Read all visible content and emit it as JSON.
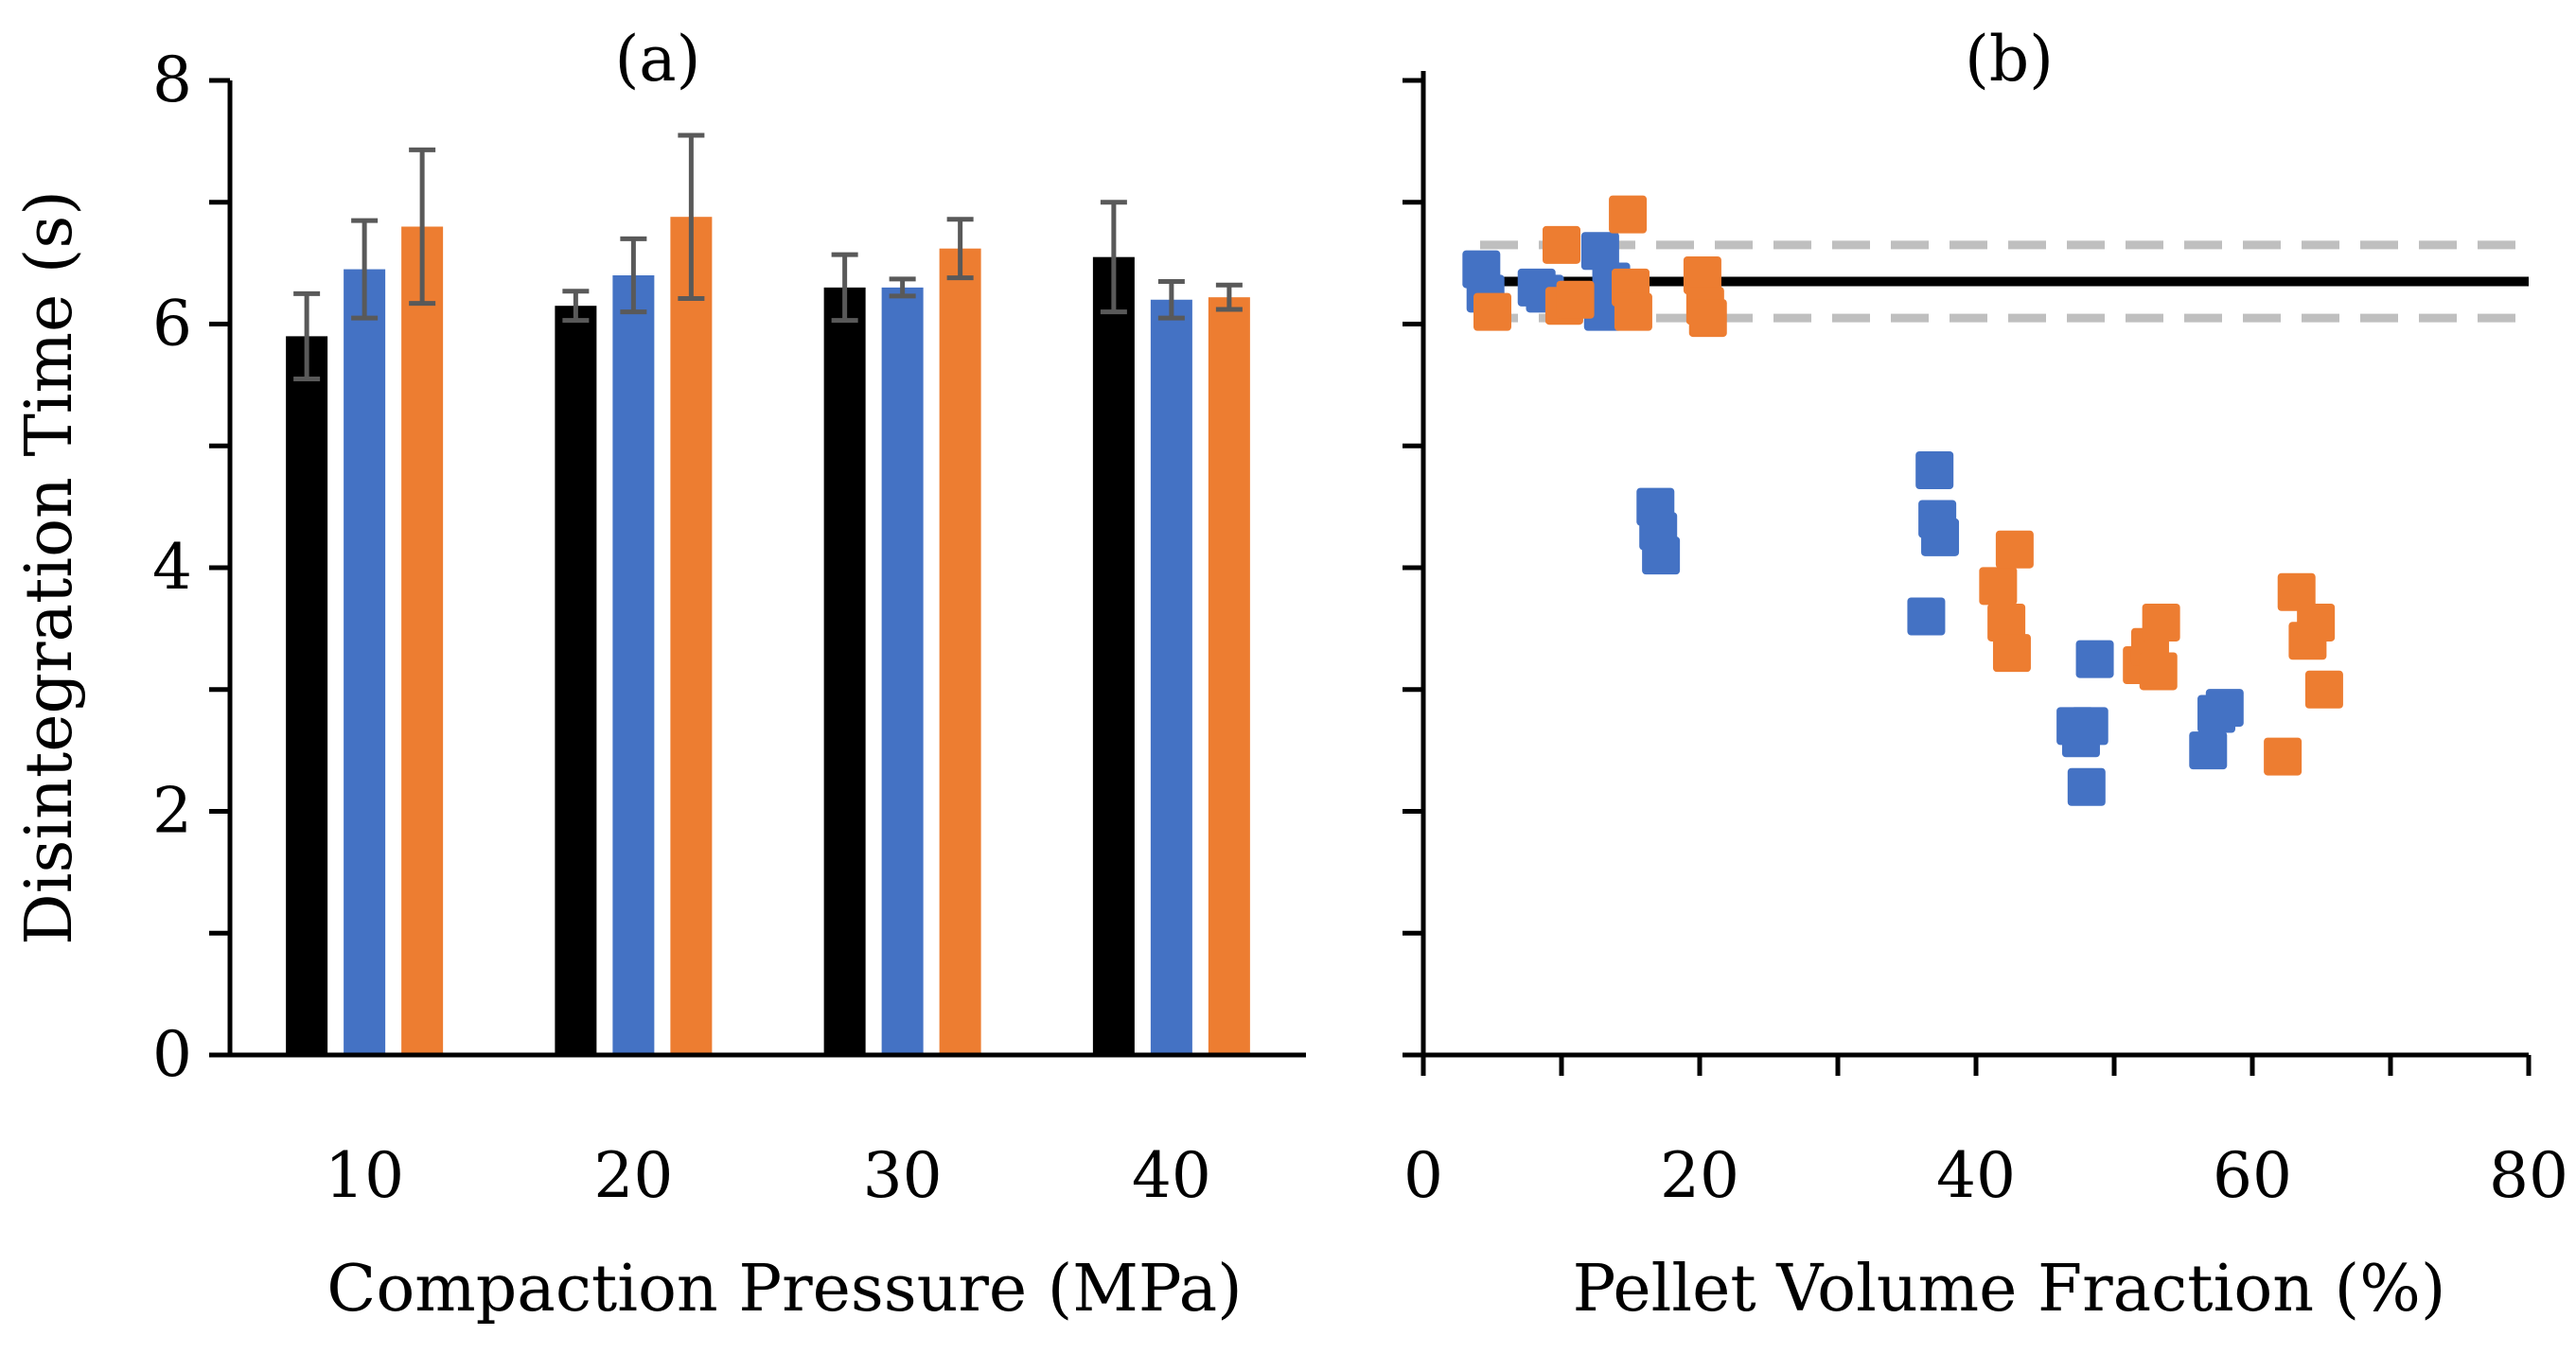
{
  "colors": {
    "series_black": "#000000",
    "series_blue": "#4472C4",
    "series_orange": "#ED7D31",
    "error_bar": "#595959",
    "dashed_line": "#BFBFBF",
    "axis": "#000000"
  },
  "chart_data": [
    {
      "type": "bar",
      "panel_label": "(a)",
      "ylabel": "Disintegration Time (s)",
      "xlabel": "Compaction Pressure (MPa)",
      "ylim": [
        0,
        8
      ],
      "yticks": [
        0,
        2,
        4,
        6,
        8
      ],
      "y_minor_step": 1,
      "categories": [
        "10",
        "20",
        "30",
        "40"
      ],
      "series": [
        {
          "name": "black",
          "color": "#000000",
          "values": [
            5.9,
            6.15,
            6.3,
            6.55
          ],
          "errors": [
            0.35,
            0.12,
            0.27,
            0.45
          ]
        },
        {
          "name": "blue",
          "color": "#4472C4",
          "values": [
            6.45,
            6.4,
            6.3,
            6.2
          ],
          "errors": [
            0.4,
            0.3,
            0.07,
            0.15
          ]
        },
        {
          "name": "orange",
          "color": "#ED7D31",
          "values": [
            6.8,
            6.88,
            6.62,
            6.22
          ],
          "errors": [
            0.63,
            0.67,
            0.24,
            0.1
          ]
        }
      ]
    },
    {
      "type": "scatter",
      "panel_label": "(b)",
      "xlabel": "Pellet Volume Fraction (%)",
      "xlim": [
        0,
        80
      ],
      "xticks": [
        0,
        20,
        40,
        60,
        80
      ],
      "x_minor_step": 10,
      "ylim": [
        0,
        8
      ],
      "y_minor_step": 1,
      "hlines": [
        {
          "y": 6.35,
          "style": "solid",
          "color": "#000000"
        },
        {
          "y": 6.65,
          "style": "dashed",
          "color": "#BFBFBF"
        },
        {
          "y": 6.05,
          "style": "dashed",
          "color": "#BFBFBF"
        }
      ],
      "series": [
        {
          "name": "blue",
          "color": "#4472C4",
          "points": [
            [
              4.2,
              6.45
            ],
            [
              4.5,
              6.25
            ],
            [
              8.2,
              6.3
            ],
            [
              8.8,
              6.25
            ],
            [
              12.8,
              6.6
            ],
            [
              13.0,
              6.1
            ],
            [
              13.6,
              6.35
            ],
            [
              16.8,
              4.5
            ],
            [
              17.0,
              4.3
            ],
            [
              17.2,
              4.1
            ],
            [
              37.0,
              4.8
            ],
            [
              37.2,
              4.4
            ],
            [
              37.4,
              4.25
            ],
            [
              36.4,
              3.6
            ],
            [
              47.2,
              2.7
            ],
            [
              47.6,
              2.6
            ],
            [
              48.0,
              2.2
            ],
            [
              48.2,
              2.7
            ],
            [
              48.6,
              3.25
            ],
            [
              56.8,
              2.5
            ],
            [
              57.4,
              2.8
            ],
            [
              58.0,
              2.85
            ]
          ]
        },
        {
          "name": "orange",
          "color": "#ED7D31",
          "points": [
            [
              5.0,
              6.1
            ],
            [
              10.0,
              6.65
            ],
            [
              10.2,
              6.15
            ],
            [
              11.0,
              6.2
            ],
            [
              14.8,
              6.9
            ],
            [
              15.0,
              6.3
            ],
            [
              15.2,
              6.1
            ],
            [
              20.2,
              6.4
            ],
            [
              20.4,
              6.15
            ],
            [
              20.6,
              6.05
            ],
            [
              41.6,
              3.85
            ],
            [
              42.2,
              3.55
            ],
            [
              42.6,
              3.3
            ],
            [
              42.8,
              4.15
            ],
            [
              52.0,
              3.2
            ],
            [
              52.6,
              3.35
            ],
            [
              53.2,
              3.15
            ],
            [
              53.4,
              3.55
            ],
            [
              62.2,
              2.45
            ],
            [
              63.2,
              3.8
            ],
            [
              64.0,
              3.4
            ],
            [
              64.6,
              3.55
            ],
            [
              65.2,
              3.0
            ]
          ]
        }
      ]
    }
  ]
}
